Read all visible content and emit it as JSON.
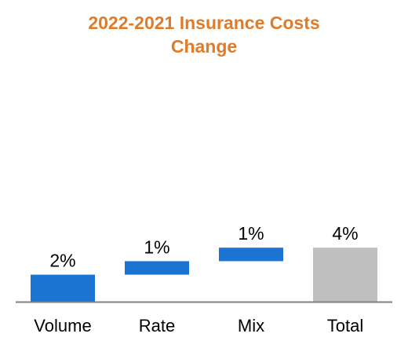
{
  "chart_data": {
    "type": "bar",
    "subtype": "waterfall",
    "title_lines": [
      "2022-2021 Insurance Costs",
      "Change"
    ],
    "title_color": "#E07B2A",
    "categories": [
      "Volume",
      "Rate",
      "Mix",
      "Total"
    ],
    "values": [
      2,
      1,
      1,
      4
    ],
    "data_labels": [
      "2%",
      "1%",
      "1%",
      "4%"
    ],
    "unit": "%",
    "increment_color": "#1B74D1",
    "total_color": "#BFBFBF",
    "baseline_color": "#808080",
    "xlabel": "",
    "ylabel": "",
    "ylim": [
      0,
      8
    ],
    "grid": false,
    "legend": "none"
  }
}
